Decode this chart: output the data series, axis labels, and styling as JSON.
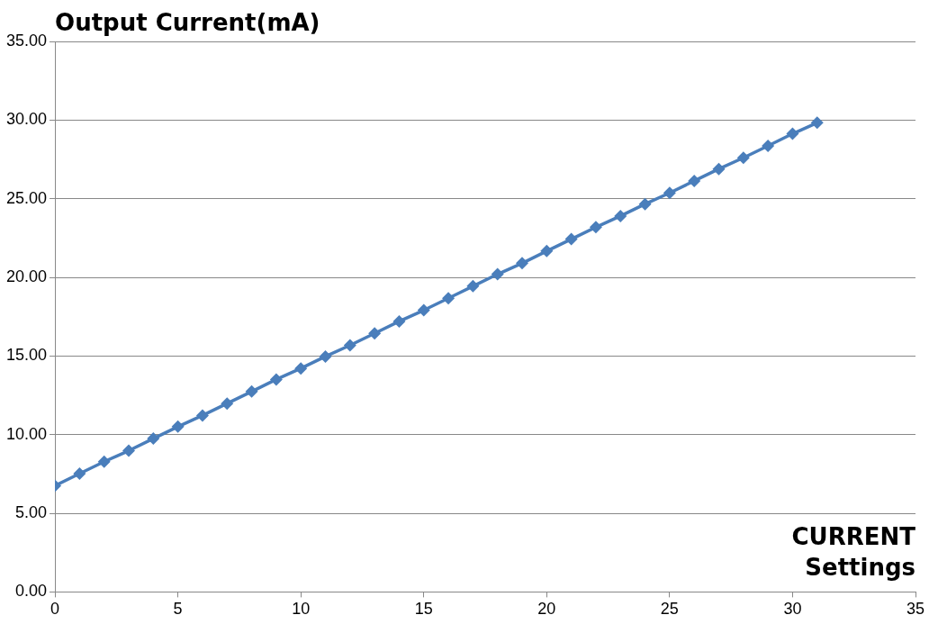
{
  "chart_data": {
    "type": "line",
    "xlabel": "CURRENT Settings",
    "ylabel": "Output Current(mA)",
    "x": [
      0,
      1,
      2,
      3,
      4,
      5,
      6,
      7,
      8,
      9,
      10,
      11,
      12,
      13,
      14,
      15,
      16,
      17,
      18,
      19,
      20,
      21,
      22,
      23,
      24,
      25,
      26,
      27,
      28,
      29,
      30,
      31
    ],
    "series": [
      {
        "color": "#4a7ebb",
        "values": [
          6.75,
          7.52,
          8.28,
          8.98,
          9.75,
          10.51,
          11.22,
          11.98,
          12.74,
          13.51,
          14.21,
          14.97,
          15.68,
          16.44,
          17.2,
          17.91,
          18.67,
          19.44,
          20.2,
          20.9,
          21.67,
          22.43,
          23.19,
          23.9,
          24.66,
          25.37,
          26.13,
          26.89,
          27.6,
          28.36,
          29.13,
          29.83
        ]
      }
    ],
    "xlim": [
      0,
      35
    ],
    "xticks": [
      0,
      5,
      10,
      15,
      20,
      25,
      30,
      35
    ],
    "ylim": [
      0,
      35
    ],
    "yticks": [
      {
        "value": 0,
        "label": "0.00"
      },
      {
        "value": 5,
        "label": "5.00"
      },
      {
        "value": 10,
        "label": "10.00"
      },
      {
        "value": 15,
        "label": "15.00"
      },
      {
        "value": 20,
        "label": "20.00"
      },
      {
        "value": 25,
        "label": "25.00"
      },
      {
        "value": 30,
        "label": "30.00"
      },
      {
        "value": 35,
        "label": "35.00"
      }
    ],
    "grid": "y",
    "marker": "diamond",
    "line_style": "solid"
  }
}
